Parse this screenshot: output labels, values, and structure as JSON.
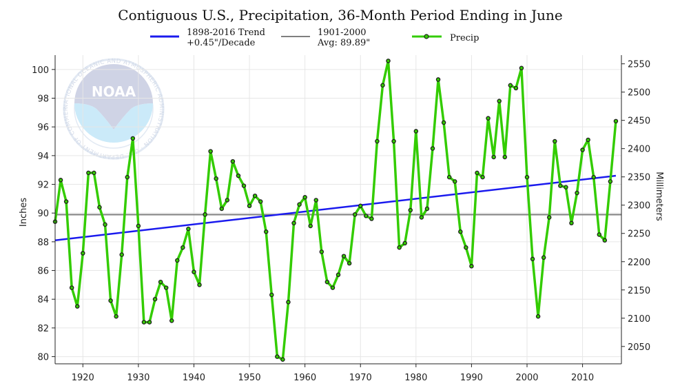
{
  "chart_data": {
    "type": "line",
    "title": "Contiguous U.S., Precipitation, 36-Month Period Ending in June",
    "ylabel": "Inches",
    "y2label": "Millimeters",
    "xlim": [
      1915,
      2017
    ],
    "ylim": [
      79.5,
      101
    ],
    "x_ticks": [
      1920,
      1930,
      1940,
      1950,
      1960,
      1970,
      1980,
      1990,
      2000,
      2010
    ],
    "y_ticks": [
      80,
      82,
      84,
      86,
      88,
      90,
      92,
      94,
      96,
      98,
      100
    ],
    "y2_ticks": [
      2050,
      2100,
      2150,
      2200,
      2250,
      2300,
      2350,
      2400,
      2450,
      2500,
      2550
    ],
    "grid": true,
    "legend_position": "top",
    "legend": {
      "trend": {
        "line1": "1898-2016 Trend",
        "line2": "+0.45\"/Decade",
        "color": "#1a1aee"
      },
      "average": {
        "line1": "1901-2000",
        "line2": "Avg: 89.89\"",
        "color": "#7f7f7f"
      },
      "precip": {
        "label": "Precip",
        "color": "#33cc00"
      }
    },
    "average_value": 89.89,
    "trend_line": {
      "x": [
        1915,
        2016
      ],
      "y": [
        88.1,
        92.6
      ]
    },
    "series": [
      {
        "name": "Precip",
        "x": [
          1915,
          1916,
          1917,
          1918,
          1919,
          1920,
          1921,
          1922,
          1923,
          1924,
          1925,
          1926,
          1927,
          1928,
          1929,
          1930,
          1931,
          1932,
          1933,
          1934,
          1935,
          1936,
          1937,
          1938,
          1939,
          1940,
          1941,
          1942,
          1943,
          1944,
          1945,
          1946,
          1947,
          1948,
          1949,
          1950,
          1951,
          1952,
          1953,
          1954,
          1955,
          1956,
          1957,
          1958,
          1959,
          1960,
          1961,
          1962,
          1963,
          1964,
          1965,
          1966,
          1967,
          1968,
          1969,
          1970,
          1971,
          1972,
          1973,
          1974,
          1975,
          1976,
          1977,
          1978,
          1979,
          1980,
          1981,
          1982,
          1983,
          1984,
          1985,
          1986,
          1987,
          1988,
          1989,
          1990,
          1991,
          1992,
          1993,
          1994,
          1995,
          1996,
          1997,
          1998,
          1999,
          2000,
          2001,
          2002,
          2003,
          2004,
          2005,
          2006,
          2007,
          2008,
          2009,
          2010,
          2011,
          2012,
          2013,
          2014,
          2015,
          2016
        ],
        "values": [
          89.4,
          92.3,
          90.8,
          84.8,
          83.5,
          87.2,
          92.8,
          92.8,
          90.4,
          89.2,
          83.9,
          82.8,
          87.1,
          92.5,
          95.2,
          89.1,
          82.4,
          82.4,
          84.0,
          85.2,
          84.8,
          82.5,
          86.7,
          87.6,
          88.9,
          85.9,
          85.0,
          89.9,
          94.3,
          92.4,
          90.3,
          90.9,
          93.6,
          92.6,
          91.9,
          90.5,
          91.2,
          90.8,
          88.7,
          84.3,
          80.0,
          79.8,
          83.8,
          89.3,
          90.6,
          91.1,
          89.1,
          90.9,
          87.3,
          85.2,
          84.8,
          85.7,
          87.0,
          86.5,
          89.9,
          90.5,
          89.8,
          89.6,
          95.0,
          98.9,
          100.6,
          95.0,
          87.6,
          87.9,
          90.2,
          95.7,
          89.7,
          90.3,
          94.5,
          99.3,
          96.3,
          92.5,
          92.2,
          88.7,
          87.6,
          86.3,
          92.8,
          92.5,
          96.6,
          93.9,
          97.8,
          93.9,
          98.9,
          98.7,
          100.1,
          92.5,
          86.8,
          82.8,
          86.9,
          89.7,
          95.0,
          91.9,
          91.8,
          89.3,
          91.4,
          94.4,
          95.1,
          92.5,
          88.5,
          88.1,
          92.2,
          96.4
        ]
      }
    ]
  },
  "logo": {
    "name": "NOAA",
    "ring_text": "NATIONAL OCEANIC AND ATMOSPHERIC ADMINISTRATION · U.S. DEPARTMENT OF COMMERCE ·"
  }
}
